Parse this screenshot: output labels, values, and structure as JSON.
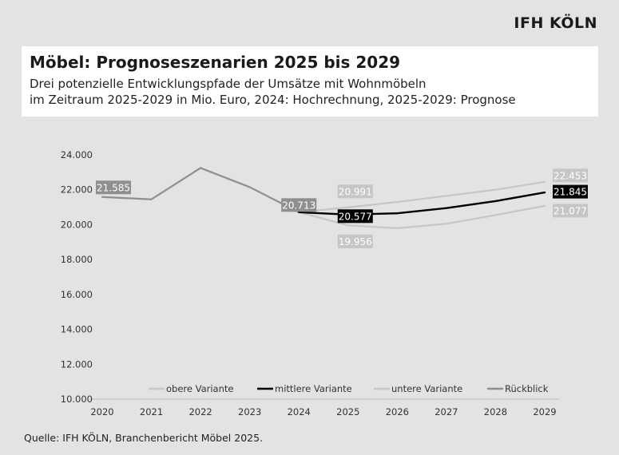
{
  "brand": "IFH KÖLN",
  "title": "Möbel: Prognoseszenarien 2025 bis 2029",
  "subtitle_line1": "Drei potenzielle Entwicklungspfade der Umsätze mit Wohnmöbeln",
  "subtitle_line2": "im Zeitraum 2025-2029 in Mio. Euro, 2024: Hochrechnung, 2025-2029: Prognose",
  "source": "Quelle: IFH KÖLN, Branchenbericht Möbel 2025.",
  "colors": {
    "upper": "#c6c6c6",
    "middle": "#000000",
    "lower": "#c6c6c6",
    "history": "#8f8f8f",
    "background": "#e3e3e3"
  },
  "chart_data": {
    "type": "line",
    "x": [
      2020,
      2021,
      2022,
      2023,
      2024,
      2025,
      2026,
      2027,
      2028,
      2029
    ],
    "ylim": [
      10000,
      24000
    ],
    "yticks": [
      "10.000",
      "12.000",
      "14.000",
      "16.000",
      "18.000",
      "20.000",
      "22.000",
      "24.000"
    ],
    "ytick_values": [
      10000,
      12000,
      14000,
      16000,
      18000,
      20000,
      22000,
      24000
    ],
    "grid": false,
    "legend_position": "bottom",
    "series": [
      {
        "name": "obere Variante",
        "key": "upper",
        "x": [
          2024,
          2025,
          2026,
          2027,
          2028,
          2029
        ],
        "values": [
          20713,
          20991,
          21300,
          21650,
          22000,
          22453
        ]
      },
      {
        "name": "mittlere Variante",
        "key": "middle",
        "x": [
          2024,
          2025,
          2026,
          2027,
          2028,
          2029
        ],
        "values": [
          20713,
          20577,
          20650,
          20950,
          21350,
          21845
        ]
      },
      {
        "name": "untere Variante",
        "key": "lower",
        "x": [
          2024,
          2025,
          2026,
          2027,
          2028,
          2029
        ],
        "values": [
          20713,
          19956,
          19800,
          20050,
          20550,
          21077
        ]
      },
      {
        "name": "Rückblick",
        "key": "history",
        "x": [
          2020,
          2021,
          2022,
          2023,
          2024
        ],
        "values": [
          21585,
          21450,
          23250,
          22150,
          20713
        ]
      }
    ],
    "data_labels": [
      {
        "text": "21.585",
        "x": 2020,
        "y": 21585,
        "style": "history"
      },
      {
        "text": "20.713",
        "x": 2024,
        "y": 20713,
        "style": "history"
      },
      {
        "text": "20.991",
        "x": 2025,
        "y": 20991,
        "style": "light"
      },
      {
        "text": "20.577",
        "x": 2025,
        "y": 20577,
        "style": "dark"
      },
      {
        "text": "19.956",
        "x": 2025,
        "y": 19956,
        "style": "light"
      },
      {
        "text": "22.453",
        "x": 2029,
        "y": 22453,
        "style": "light"
      },
      {
        "text": "21.845",
        "x": 2029,
        "y": 21845,
        "style": "dark"
      },
      {
        "text": "21.077",
        "x": 2029,
        "y": 21077,
        "style": "light"
      }
    ]
  }
}
